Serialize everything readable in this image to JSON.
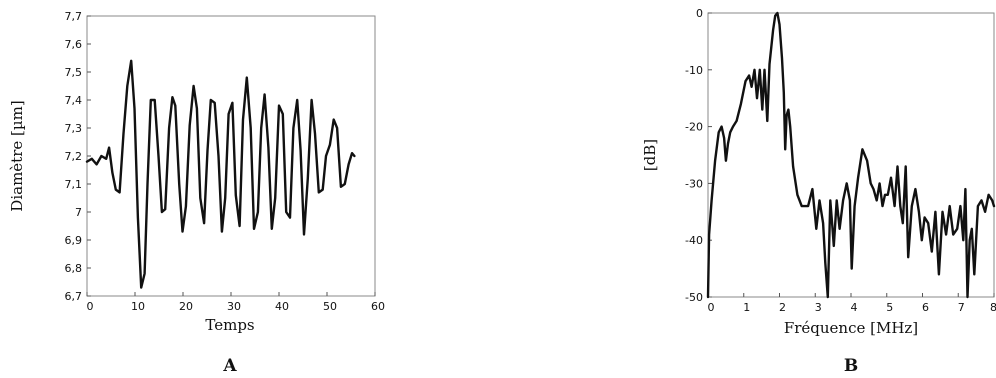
{
  "chart_data": [
    {
      "type": "line",
      "panel_label": "A",
      "xlabel": "Temps",
      "ylabel": "Diamètre [µm]",
      "xlim": [
        0,
        60
      ],
      "ylim": [
        6.7,
        7.7
      ],
      "xticks": [
        "0",
        "10",
        "20",
        "30",
        "40",
        "50",
        "60"
      ],
      "yticks": [
        "6,7",
        "6,8",
        "6,9",
        "7",
        "7,1",
        "7,2",
        "7,3",
        "7,4",
        "7,5",
        "7,6",
        "7,7"
      ],
      "grid": false,
      "series": [
        {
          "x": [
            0,
            1,
            2,
            3,
            4,
            4.6,
            5.3,
            6,
            6.8,
            7.6,
            8.4,
            9.2,
            9.9,
            10.6,
            11.3,
            12,
            12.6,
            13.3,
            14.1,
            14.9,
            15.6,
            16.3,
            17.1,
            17.8,
            18.4,
            19.2,
            19.9,
            20.6,
            21.4,
            22.2,
            22.9,
            23.6,
            24.4,
            25.1,
            25.8,
            26.6,
            27.4,
            28.1,
            28.8,
            29.5,
            30.3,
            31,
            31.8,
            32.5,
            33.3,
            34.1,
            34.8,
            35.6,
            36.3,
            37,
            37.8,
            38.5,
            39.2,
            40,
            40.8,
            41.5,
            42.3,
            43,
            43.8,
            44.5,
            45.2,
            46,
            46.8,
            47.5,
            48.3,
            49.1,
            49.8,
            50.6,
            51.4,
            52.1,
            52.9,
            53.7,
            54.5,
            55.2,
            55.7
          ],
          "y": [
            7.18,
            7.19,
            7.17,
            7.2,
            7.19,
            7.23,
            7.14,
            7.08,
            7.07,
            7.28,
            7.45,
            7.54,
            7.37,
            6.98,
            6.73,
            6.78,
            7.1,
            7.4,
            7.4,
            7.2,
            7.0,
            7.01,
            7.3,
            7.41,
            7.38,
            7.1,
            6.93,
            7.02,
            7.31,
            7.45,
            7.37,
            7.05,
            6.96,
            7.22,
            7.4,
            7.39,
            7.2,
            6.93,
            7.05,
            7.35,
            7.39,
            7.06,
            6.95,
            7.33,
            7.48,
            7.3,
            6.94,
            7.0,
            7.3,
            7.42,
            7.23,
            6.94,
            7.05,
            7.38,
            7.35,
            7.0,
            6.98,
            7.3,
            7.4,
            7.22,
            6.92,
            7.12,
            7.4,
            7.28,
            7.07,
            7.08,
            7.2,
            7.24,
            7.33,
            7.3,
            7.09,
            7.1,
            7.17,
            7.21,
            7.2
          ]
        }
      ]
    },
    {
      "type": "line",
      "panel_label": "B",
      "xlabel": "Fréquence [MHz]",
      "ylabel": "[dB]",
      "xlim": [
        0,
        8
      ],
      "ylim": [
        -50,
        0
      ],
      "xticks": [
        "0",
        "1",
        "2",
        "3",
        "4",
        "5",
        "6",
        "7",
        "8"
      ],
      "yticks": [
        "-50",
        "-40",
        "-30",
        "-20",
        "-10",
        "0"
      ],
      "grid": false,
      "series": [
        {
          "x": [
            0,
            0.03,
            0.1,
            0.2,
            0.3,
            0.38,
            0.45,
            0.5,
            0.56,
            0.62,
            0.7,
            0.8,
            0.92,
            1.05,
            1.15,
            1.22,
            1.3,
            1.37,
            1.45,
            1.52,
            1.58,
            1.66,
            1.72,
            1.77,
            1.82,
            1.88,
            1.94,
            2.0,
            2.07,
            2.12,
            2.16,
            2.2,
            2.25,
            2.3,
            2.38,
            2.5,
            2.62,
            2.8,
            2.92,
            3.03,
            3.12,
            3.22,
            3.28,
            3.35,
            3.42,
            3.47,
            3.52,
            3.6,
            3.68,
            3.78,
            3.88,
            3.97,
            4.02,
            4.1,
            4.2,
            4.32,
            4.45,
            4.55,
            4.63,
            4.72,
            4.8,
            4.88,
            4.95,
            5.03,
            5.12,
            5.22,
            5.3,
            5.38,
            5.45,
            5.53,
            5.6,
            5.7,
            5.8,
            5.9,
            5.98,
            6.06,
            6.16,
            6.26,
            6.36,
            6.46,
            6.56,
            6.66,
            6.76,
            6.86,
            6.97,
            7.06,
            7.14,
            7.2,
            7.26,
            7.32,
            7.38,
            7.45,
            7.55,
            7.65,
            7.75,
            7.85,
            7.95,
            8.0
          ],
          "y": [
            -50,
            -39,
            -33,
            -26,
            -21,
            -20,
            -22,
            -26,
            -23,
            -21,
            -20,
            -19,
            -16,
            -12,
            -11,
            -13,
            -10,
            -15,
            -10,
            -17,
            -10,
            -19,
            -9,
            -6,
            -3,
            -0.5,
            0,
            -2,
            -8,
            -14,
            -24,
            -18,
            -17,
            -20,
            -27,
            -32,
            -34,
            -34,
            -31,
            -38,
            -33,
            -37,
            -44,
            -50,
            -33,
            -37,
            -41,
            -33,
            -38,
            -33,
            -30,
            -33,
            -45,
            -34,
            -29,
            -24,
            -26,
            -30,
            -31,
            -33,
            -30,
            -34,
            -32,
            -32,
            -29,
            -34,
            -27,
            -34,
            -37,
            -27,
            -43,
            -34,
            -31,
            -35,
            -40,
            -36,
            -37,
            -42,
            -35,
            -46,
            -35,
            -39,
            -34,
            -39,
            -38,
            -34,
            -40,
            -31,
            -50,
            -40,
            -38,
            -46,
            -34,
            -33,
            -35,
            -32,
            -33,
            -34
          ]
        }
      ]
    }
  ]
}
